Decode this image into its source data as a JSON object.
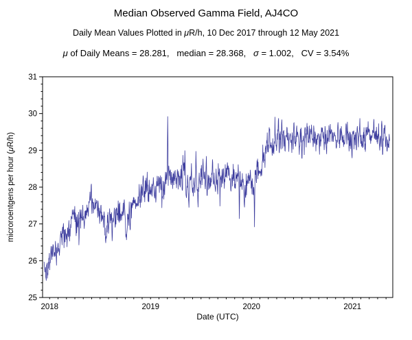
{
  "chart_data": {
    "type": "line",
    "title": "Median Observed Gamma Field, AJ4CO",
    "subtitle_parts": [
      "Daily Mean Values Plotted in ",
      "μ",
      "R/h, 10 Dec 2017 through 12 May 2021"
    ],
    "stats_display": [
      "μ",
      " of Daily Means = 28.281,   median = 28.368,   ",
      "σ",
      " = 1.002,   CV = 3.54%"
    ],
    "stats": {
      "mean_of_daily_means": 28.281,
      "median": 28.368,
      "sigma": 1.002,
      "cv_percent": 3.54
    },
    "xlabel": "Date (UTC)",
    "ylabel_parts": [
      "microroentgens per hour (",
      "μ",
      "R/h)"
    ],
    "date_range": {
      "start": "10 Dec 2017",
      "end": "12 May 2021"
    },
    "xlim": [
      2017.93,
      2021.4
    ],
    "ylim": [
      25,
      31
    ],
    "xticks": [
      2018,
      2019,
      2020,
      2021
    ],
    "xtick_labels": [
      "2018",
      "2019",
      "2020",
      "2021"
    ],
    "yticks": [
      25,
      26,
      27,
      28,
      29,
      30,
      31
    ],
    "x_minor_step": 0.08333333,
    "y_minor_step": 0.2,
    "series_start": 2017.945,
    "series_end": 2021.37,
    "sample_interval_years": 0.00273973,
    "noise_amplitude": 0.22,
    "seed": 42,
    "line_color": "#3D3D9E",
    "axis_color": "#000000",
    "background_color": "#FFFFFF",
    "trend_keypoints": [
      [
        2017.945,
        25.95
      ],
      [
        2017.96,
        25.75
      ],
      [
        2018.0,
        26.05
      ],
      [
        2018.06,
        26.25
      ],
      [
        2018.12,
        26.55
      ],
      [
        2018.2,
        26.95
      ],
      [
        2018.3,
        27.15
      ],
      [
        2018.38,
        27.45
      ],
      [
        2018.44,
        27.55
      ],
      [
        2018.5,
        27.25
      ],
      [
        2018.56,
        26.95
      ],
      [
        2018.6,
        27.05
      ],
      [
        2018.66,
        27.2
      ],
      [
        2018.72,
        27.25
      ],
      [
        2018.76,
        26.95
      ],
      [
        2018.8,
        27.35
      ],
      [
        2018.88,
        27.65
      ],
      [
        2018.95,
        27.9
      ],
      [
        2019.0,
        28.05
      ],
      [
        2019.06,
        27.95
      ],
      [
        2019.12,
        28.15
      ],
      [
        2019.2,
        28.3
      ],
      [
        2019.28,
        28.3
      ],
      [
        2019.36,
        28.1
      ],
      [
        2019.44,
        28.05
      ],
      [
        2019.52,
        28.25
      ],
      [
        2019.6,
        28.35
      ],
      [
        2019.68,
        28.3
      ],
      [
        2019.76,
        28.4
      ],
      [
        2019.84,
        28.3
      ],
      [
        2019.9,
        28.1
      ],
      [
        2019.96,
        28.0
      ],
      [
        2020.02,
        28.2
      ],
      [
        2020.08,
        28.55
      ],
      [
        2020.14,
        29.0
      ],
      [
        2020.2,
        29.25
      ],
      [
        2020.3,
        29.35
      ],
      [
        2020.45,
        29.3
      ],
      [
        2020.6,
        29.3
      ],
      [
        2020.75,
        29.35
      ],
      [
        2020.9,
        29.3
      ],
      [
        2021.05,
        29.35
      ],
      [
        2021.2,
        29.4
      ],
      [
        2021.37,
        29.3
      ]
    ],
    "spikes": [
      [
        2017.965,
        25.55
      ],
      [
        2018.62,
        26.5
      ],
      [
        2018.755,
        26.6
      ],
      [
        2019.17,
        30.05
      ],
      [
        2019.38,
        27.35
      ],
      [
        2019.47,
        27.3
      ],
      [
        2019.56,
        27.55
      ],
      [
        2019.88,
        26.95
      ],
      [
        2019.93,
        27.3
      ],
      [
        2020.03,
        26.9
      ],
      [
        2020.3,
        30.05
      ],
      [
        2020.42,
        29.9
      ],
      [
        2020.5,
        28.6
      ],
      [
        2020.95,
        29.85
      ],
      [
        2021.3,
        28.75
      ]
    ]
  }
}
